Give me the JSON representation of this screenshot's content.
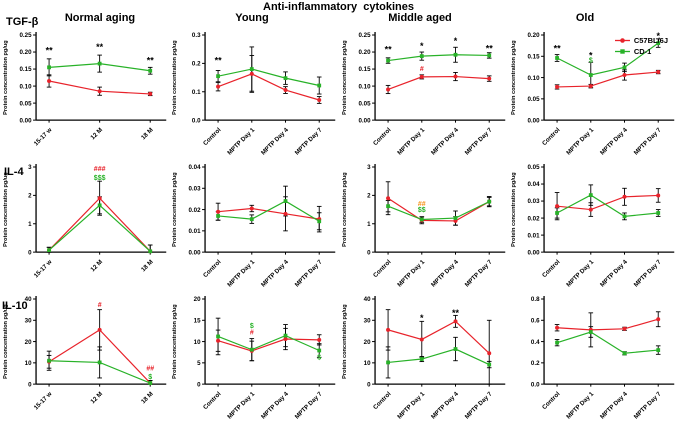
{
  "title": "Anti-inflammatory  cytokines",
  "ylabel": "Protein concentration pg/ug",
  "row_labels": [
    "TGF-β",
    "IL-4",
    "IL-10"
  ],
  "col_headers": [
    "Normal aging",
    "Young",
    "Middle aged",
    "Old"
  ],
  "colors": {
    "c57_red": "#e8232b",
    "cd1_green": "#28b228",
    "axis_black": "#000000",
    "annotation_orange": "#f7941d"
  },
  "legend": [
    {
      "name": "C57BL/6J",
      "color": "#e8232b",
      "marker": "circle"
    },
    {
      "name": "CD-1",
      "color": "#28b228",
      "marker": "square"
    }
  ],
  "chart_data": [
    {
      "row": "TGF-β",
      "col": "Normal aging",
      "type": "line",
      "ylabel": "Protein concentration pg/ug",
      "categories": [
        "15-17 w",
        "12 M",
        "18 M"
      ],
      "ylim": [
        0,
        0.25
      ],
      "ystep": 0.05,
      "ydec": 2,
      "series": [
        {
          "name": "C57BL/6J",
          "color": "#e8232b",
          "marker": "circle",
          "values": [
            0.115,
            0.085,
            0.077
          ],
          "err": [
            0.018,
            0.012,
            0.005
          ]
        },
        {
          "name": "CD-1",
          "color": "#28b228",
          "marker": "square",
          "values": [
            0.155,
            0.166,
            0.145
          ],
          "err": [
            0.025,
            0.025,
            0.01
          ]
        }
      ],
      "annotations": [
        {
          "i": 0,
          "y": 0.205,
          "text": "**",
          "color": "#000000"
        },
        {
          "i": 1,
          "y": 0.215,
          "text": "**",
          "color": "#000000"
        },
        {
          "i": 2,
          "y": 0.175,
          "text": "**",
          "color": "#000000"
        }
      ]
    },
    {
      "row": "TGF-β",
      "col": "Young",
      "type": "line",
      "ylabel": "Protein concentration pg/ug",
      "categories": [
        "Control",
        "MPTP Day 1",
        "MPTP Day 4",
        "MPTP Day 7"
      ],
      "ylim": [
        0,
        0.3
      ],
      "ystep": 0.1,
      "ydec": 1,
      "series": [
        {
          "name": "C57BL/6J",
          "color": "#e8232b",
          "marker": "circle",
          "values": [
            0.118,
            0.163,
            0.106,
            0.071
          ],
          "err": [
            0.015,
            0.065,
            0.012,
            0.012
          ]
        },
        {
          "name": "CD-1",
          "color": "#28b228",
          "marker": "square",
          "values": [
            0.155,
            0.18,
            0.148,
            0.122
          ],
          "err": [
            0.02,
            0.078,
            0.022,
            0.03
          ]
        }
      ],
      "annotations": [
        {
          "i": 0,
          "y": 0.21,
          "text": "**",
          "color": "#000000"
        }
      ]
    },
    {
      "row": "TGF-β",
      "col": "Middle aged",
      "type": "line",
      "ylabel": "Protein concentration pg/ug",
      "categories": [
        "Control",
        "MPTP Day 1",
        "MPTP Day 4",
        "MPTP Day 7"
      ],
      "ylim": [
        0,
        0.25
      ],
      "ystep": 0.05,
      "ydec": 2,
      "series": [
        {
          "name": "C57BL/6J",
          "color": "#e8232b",
          "marker": "circle",
          "values": [
            0.09,
            0.127,
            0.128,
            0.122
          ],
          "err": [
            0.012,
            0.006,
            0.012,
            0.008
          ]
        },
        {
          "name": "CD-1",
          "color": "#28b228",
          "marker": "square",
          "values": [
            0.175,
            0.188,
            0.192,
            0.19
          ],
          "err": [
            0.008,
            0.012,
            0.022,
            0.008
          ]
        }
      ],
      "annotations": [
        {
          "i": 0,
          "y": 0.207,
          "text": "**",
          "color": "#000000"
        },
        {
          "i": 1,
          "y": 0.217,
          "text": "*",
          "color": "#000000"
        },
        {
          "i": 2,
          "y": 0.232,
          "text": "*",
          "color": "#000000"
        },
        {
          "i": 3,
          "y": 0.21,
          "text": "**",
          "color": "#000000"
        },
        {
          "i": 1,
          "y": 0.148,
          "text": "#",
          "color": "#e8232b"
        }
      ]
    },
    {
      "row": "TGF-β",
      "col": "Old",
      "type": "line",
      "ylabel": "Protein concentration pg/ug",
      "categories": [
        "Control",
        "MPTP Day 1",
        "MPTP Day 4",
        "MPTP Day 7"
      ],
      "ylim": [
        0,
        0.2
      ],
      "ystep": 0.05,
      "ydec": 2,
      "series": [
        {
          "name": "C57BL/6J",
          "color": "#e8232b",
          "marker": "circle",
          "values": [
            0.078,
            0.08,
            0.106,
            0.113
          ],
          "err": [
            0.005,
            0.004,
            0.012,
            0.004
          ]
        },
        {
          "name": "CD-1",
          "color": "#28b228",
          "marker": "square",
          "values": [
            0.146,
            0.106,
            0.124,
            0.181
          ],
          "err": [
            0.008,
            0.03,
            0.01,
            0.01
          ]
        }
      ],
      "annotations": [
        {
          "i": 0,
          "y": 0.168,
          "text": "**",
          "color": "#000000"
        },
        {
          "i": 1,
          "y": 0.152,
          "text": "*",
          "color": "#000000"
        },
        {
          "i": 1,
          "y": 0.139,
          "text": "$",
          "color": "#28b228"
        },
        {
          "i": 3,
          "y": 0.198,
          "text": "*",
          "color": "#000000"
        }
      ]
    },
    {
      "row": "IL-4",
      "col": "Normal aging",
      "type": "line",
      "ylabel": "Protein concentration pg/ug",
      "categories": [
        "15-17 w",
        "12 M",
        "18 M"
      ],
      "ylim": [
        0,
        3
      ],
      "ystep": 1,
      "ydec": 0,
      "series": [
        {
          "name": "C57BL/6J",
          "color": "#e8232b",
          "marker": "circle",
          "values": [
            0.07,
            1.9,
            0.03
          ],
          "err": [
            0.1,
            0.6,
            0.22
          ]
        },
        {
          "name": "CD-1",
          "color": "#28b228",
          "marker": "square",
          "values": [
            0.07,
            1.65,
            0.03
          ],
          "err": [
            0.1,
            0.3,
            0.22
          ]
        }
      ],
      "annotations": [
        {
          "i": 1,
          "y": 2.92,
          "text": "###",
          "color": "#e8232b"
        },
        {
          "i": 1,
          "y": 2.6,
          "text": "$$$",
          "color": "#28b228"
        }
      ]
    },
    {
      "row": "IL-4",
      "col": "Young",
      "type": "line",
      "ylabel": "Protein concentration pg/ug",
      "categories": [
        "Control",
        "MPTP Day 1",
        "MPTP Day 4",
        "MPTP Day 7"
      ],
      "ylim": [
        0,
        0.04
      ],
      "ystep": 0.01,
      "ydec": 2,
      "series": [
        {
          "name": "C57BL/6J",
          "color": "#e8232b",
          "marker": "circle",
          "values": [
            0.019,
            0.0205,
            0.018,
            0.0155
          ],
          "err": [
            0.004,
            0.0015,
            0.008,
            0.006
          ]
        },
        {
          "name": "CD-1",
          "color": "#28b228",
          "marker": "square",
          "values": [
            0.017,
            0.0155,
            0.024,
            0.0145
          ],
          "err": [
            0.002,
            0.002,
            0.007,
            0.004
          ]
        }
      ],
      "annotations": []
    },
    {
      "row": "IL-4",
      "col": "Middle aged",
      "type": "line",
      "ylabel": "Protein concentration pg/ug",
      "categories": [
        "Control",
        "MPTP Day 1",
        "MPTP Day 4",
        "MPTP Day 7"
      ],
      "ylim": [
        0,
        3
      ],
      "ystep": 1,
      "ydec": 0,
      "series": [
        {
          "name": "C57BL/6J",
          "color": "#e8232b",
          "marker": "circle",
          "values": [
            1.9,
            1.12,
            1.1,
            1.78
          ],
          "err": [
            0.58,
            0.12,
            0.15,
            0.15
          ]
        },
        {
          "name": "CD-1",
          "color": "#28b228",
          "marker": "square",
          "values": [
            1.62,
            1.15,
            1.2,
            1.78
          ],
          "err": [
            0.2,
            0.1,
            0.25,
            0.18
          ]
        }
      ],
      "annotations": [
        {
          "i": 1,
          "y": 1.68,
          "text": "##",
          "color": "#f7941d"
        },
        {
          "i": 1,
          "y": 1.46,
          "text": "$$",
          "color": "#28b228"
        }
      ]
    },
    {
      "row": "IL-4",
      "col": "Old",
      "type": "line",
      "ylabel": "Protein concentration pg/ug",
      "categories": [
        "Control",
        "MPTP Day 1",
        "MPTP Day 4",
        "MPTP Day 7"
      ],
      "ylim": [
        0,
        0.05
      ],
      "ystep": 0.01,
      "ydec": 2,
      "series": [
        {
          "name": "C57BL/6J",
          "color": "#e8232b",
          "marker": "circle",
          "values": [
            0.027,
            0.025,
            0.0325,
            0.0333
          ],
          "err": [
            0.008,
            0.004,
            0.005,
            0.004
          ]
        },
        {
          "name": "CD-1",
          "color": "#28b228",
          "marker": "square",
          "values": [
            0.023,
            0.0335,
            0.021,
            0.023
          ],
          "err": [
            0.003,
            0.006,
            0.002,
            0.002
          ]
        }
      ],
      "annotations": []
    },
    {
      "row": "IL-10",
      "col": "Normal aging",
      "type": "line",
      "ylabel": "Protein concentration pg/ug",
      "categories": [
        "15-17 w",
        "12 M",
        "18 M"
      ],
      "ylim": [
        0,
        40
      ],
      "ystep": 10,
      "ydec": 0,
      "series": [
        {
          "name": "C57BL/6J",
          "color": "#e8232b",
          "marker": "circle",
          "values": [
            10.5,
            25.5,
            0.5
          ],
          "err": [
            3,
            9.5,
            1.2
          ]
        },
        {
          "name": "CD-1",
          "color": "#28b228",
          "marker": "square",
          "values": [
            11,
            10.2,
            0.5
          ],
          "err": [
            4.5,
            7.3,
            1.2
          ]
        }
      ],
      "annotations": [
        {
          "i": 1,
          "y": 37,
          "text": "#",
          "color": "#e8232b"
        },
        {
          "i": 2,
          "y": 7,
          "text": "##",
          "color": "#e8232b"
        },
        {
          "i": 2,
          "y": 3.2,
          "text": "$",
          "color": "#28b228"
        }
      ]
    },
    {
      "row": "IL-10",
      "col": "Young",
      "type": "line",
      "ylabel": "Protein concentration pg/ug",
      "categories": [
        "Control",
        "MPTP Day 1",
        "MPTP Day 4",
        "MPTP Day 7"
      ],
      "ylim": [
        0,
        20
      ],
      "ystep": 5,
      "ydec": 0,
      "series": [
        {
          "name": "C57BL/6J",
          "color": "#e8232b",
          "marker": "circle",
          "values": [
            10.2,
            7.8,
            10.6,
            10.4
          ],
          "err": [
            2.5,
            2.3,
            2.5,
            1.2
          ]
        },
        {
          "name": "CD-1",
          "color": "#28b228",
          "marker": "square",
          "values": [
            11.2,
            8.1,
            11.4,
            7.9
          ],
          "err": [
            4.3,
            2.6,
            2.6,
            1.6
          ]
        }
      ],
      "annotations": [
        {
          "i": 1,
          "y": 13.5,
          "text": "$",
          "color": "#28b228"
        },
        {
          "i": 1,
          "y": 12,
          "text": "#",
          "color": "#e8232b"
        },
        {
          "i": 3,
          "y": 6.1,
          "text": "$",
          "color": "#28b228"
        }
      ]
    },
    {
      "row": "IL-10",
      "col": "Middle aged",
      "type": "line",
      "ylabel": "Protein concentration pg/ug",
      "categories": [
        "Control",
        "MPTP Day 1",
        "MPTP Day 4",
        "MPTP Day 7"
      ],
      "ylim": [
        0,
        40
      ],
      "ystep": 10,
      "ydec": 0,
      "series": [
        {
          "name": "C57BL/6J",
          "color": "#e8232b",
          "marker": "circle",
          "values": [
            25.5,
            21,
            29.5,
            14.5
          ],
          "err": [
            9.5,
            8.5,
            2.8,
            15.5
          ]
        },
        {
          "name": "CD-1",
          "color": "#28b228",
          "marker": "square",
          "values": [
            10.2,
            11.8,
            16.5,
            9.2
          ],
          "err": [
            7.3,
            1.2,
            5.5,
            1.5
          ]
        }
      ],
      "annotations": [
        {
          "i": 1,
          "y": 31,
          "text": "*",
          "color": "#000000"
        },
        {
          "i": 2,
          "y": 33.5,
          "text": "**",
          "color": "#000000"
        }
      ]
    },
    {
      "row": "IL-10",
      "col": "Old",
      "type": "line",
      "ylabel": "",
      "categories": [
        "Control",
        "MPTP Day 1",
        "MPTP Day 4",
        "MPTP Day 7"
      ],
      "ylim": [
        0,
        0.8
      ],
      "ystep": 0.2,
      "ydec": 1,
      "series": [
        {
          "name": "C57BL/6J",
          "color": "#e8232b",
          "marker": "circle",
          "values": [
            0.53,
            0.51,
            0.52,
            0.61
          ],
          "err": [
            0.03,
            0.16,
            0.015,
            0.07
          ]
        },
        {
          "name": "CD-1",
          "color": "#28b228",
          "marker": "square",
          "values": [
            0.39,
            0.49,
            0.29,
            0.32
          ],
          "err": [
            0.03,
            0.05,
            0.015,
            0.04
          ]
        }
      ],
      "annotations": []
    }
  ],
  "layout_hints": {
    "grid": "3 rows x 4 columns",
    "legend_position": "top-right",
    "gridlines": "off"
  }
}
